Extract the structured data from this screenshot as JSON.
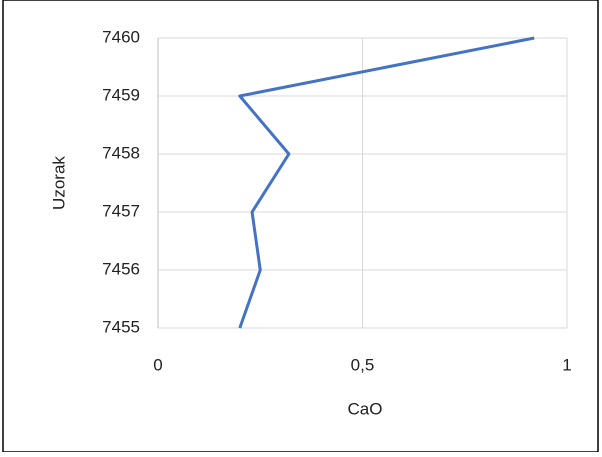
{
  "chart_data": {
    "type": "line",
    "xlabel": "CaO",
    "ylabel": "Uzorak",
    "x": [
      0.2,
      0.25,
      0.23,
      0.32,
      0.2,
      0.92
    ],
    "values": [
      7455,
      7456,
      7457,
      7458,
      7459,
      7460
    ],
    "color": "#4472c4",
    "xlim": [
      0,
      1
    ],
    "xticks": [
      0,
      {
        "value": 0.5,
        "label": "0,5"
      },
      1
    ],
    "ylim": [
      7455,
      7460
    ],
    "yticks": [
      7455,
      7456,
      7457,
      7458,
      7459,
      7460
    ],
    "grid": true
  }
}
